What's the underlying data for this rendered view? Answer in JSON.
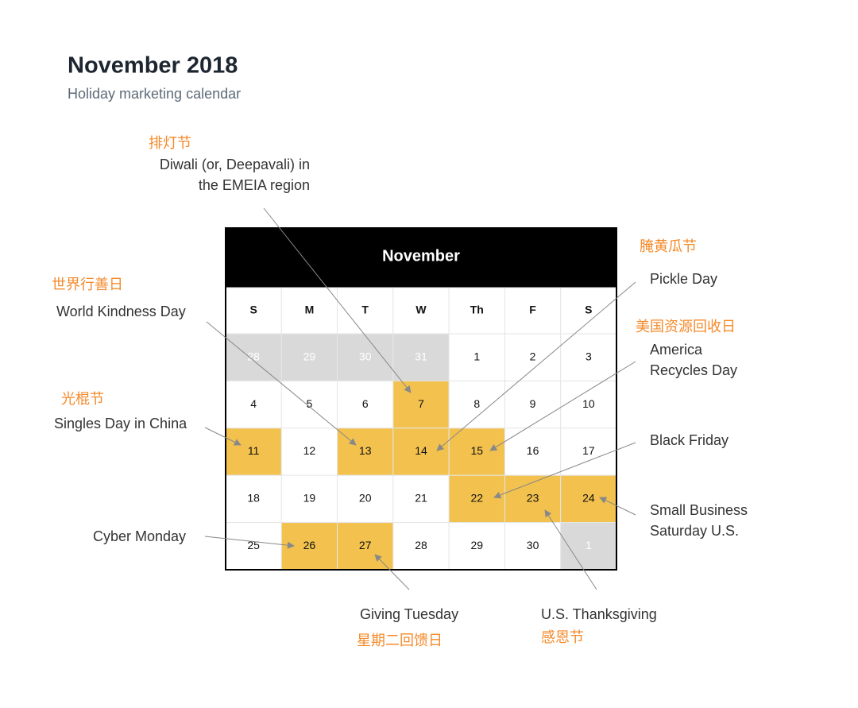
{
  "header": {
    "title": "November 2018",
    "subtitle": "Holiday marketing calendar"
  },
  "calendar": {
    "month": "November",
    "weekdays": [
      "S",
      "M",
      "T",
      "W",
      "Th",
      "F",
      "S"
    ],
    "weeks": [
      [
        {
          "day": "28",
          "state": "other-month"
        },
        {
          "day": "29",
          "state": "other-month"
        },
        {
          "day": "30",
          "state": "other-month"
        },
        {
          "day": "31",
          "state": "other-month"
        },
        {
          "day": "1"
        },
        {
          "day": "2"
        },
        {
          "day": "3"
        }
      ],
      [
        {
          "day": "4"
        },
        {
          "day": "5"
        },
        {
          "day": "6"
        },
        {
          "day": "7",
          "state": "highlight"
        },
        {
          "day": "8"
        },
        {
          "day": "9"
        },
        {
          "day": "10"
        }
      ],
      [
        {
          "day": "11",
          "state": "highlight"
        },
        {
          "day": "12"
        },
        {
          "day": "13",
          "state": "highlight"
        },
        {
          "day": "14",
          "state": "highlight"
        },
        {
          "day": "15",
          "state": "highlight"
        },
        {
          "day": "16"
        },
        {
          "day": "17"
        }
      ],
      [
        {
          "day": "18"
        },
        {
          "day": "19"
        },
        {
          "day": "20"
        },
        {
          "day": "21"
        },
        {
          "day": "22",
          "state": "highlight"
        },
        {
          "day": "23",
          "state": "highlight"
        },
        {
          "day": "24",
          "state": "highlight"
        }
      ],
      [
        {
          "day": "25"
        },
        {
          "day": "26",
          "state": "highlight"
        },
        {
          "day": "27",
          "state": "highlight"
        },
        {
          "day": "28"
        },
        {
          "day": "29"
        },
        {
          "day": "30"
        },
        {
          "day": "1",
          "state": "other-month"
        }
      ]
    ]
  },
  "annotations": [
    {
      "zh": "排灯节",
      "en": [
        "Diwali (or, Deepavali) in",
        "the EMEIA region"
      ]
    },
    {
      "zh": "世界行善日",
      "en": [
        "World Kindness Day"
      ]
    },
    {
      "zh": "光棍节",
      "en": [
        "Singles Day in China"
      ]
    },
    {
      "en": [
        "Cyber Monday"
      ]
    },
    {
      "zh": "星期二回馈日",
      "en": [
        "Giving Tuesday"
      ]
    },
    {
      "zh": "感恩节",
      "en": [
        "U.S. Thanksgiving"
      ]
    },
    {
      "en": [
        "Small Business",
        "Saturday U.S."
      ]
    },
    {
      "en": [
        "Black Friday"
      ]
    },
    {
      "zh": "美国资源回收日",
      "en": [
        "America",
        "Recycles Day"
      ]
    },
    {
      "zh": "腌黄瓜节",
      "en": [
        "Pickle Day"
      ]
    }
  ]
}
